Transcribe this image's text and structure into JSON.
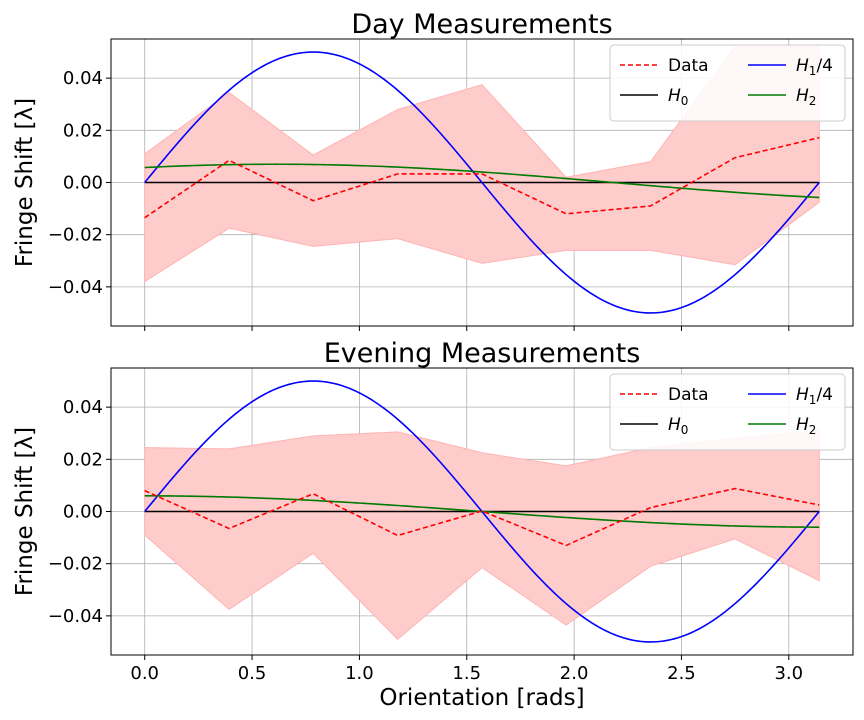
{
  "chart_data": [
    {
      "type": "line",
      "title": "Day Measurements",
      "xlabel": "",
      "ylabel": "Fringe Shift [λ]",
      "xlim": [
        -0.157,
        3.299
      ],
      "ylim": [
        -0.055,
        0.055
      ],
      "xticks": [
        0.0,
        0.5,
        1.0,
        1.5,
        2.0,
        2.5,
        3.0
      ],
      "xtick_labels_shown": false,
      "yticks": [
        -0.04,
        -0.02,
        0.0,
        0.02,
        0.04
      ],
      "ytick_labels": [
        "−0.04",
        "−0.02",
        "0.00",
        "0.02",
        "0.04"
      ],
      "grid": true,
      "legend_position": "top-right",
      "legend_columns": 2,
      "series": [
        {
          "name": "Data",
          "kind": "dashed-line",
          "color": "#ff0000",
          "x": [
            0.0,
            0.393,
            0.785,
            1.178,
            1.571,
            1.963,
            2.356,
            2.749,
            3.142
          ],
          "y": [
            -0.0135,
            0.0085,
            -0.007,
            0.0033,
            0.0033,
            -0.012,
            -0.009,
            0.0095,
            0.0172
          ],
          "band_lower": [
            -0.038,
            -0.0175,
            -0.0245,
            -0.0215,
            -0.031,
            -0.026,
            -0.026,
            -0.0315,
            -0.0075
          ],
          "band_upper": [
            0.011,
            0.0345,
            0.0105,
            0.028,
            0.0375,
            0.002,
            0.008,
            0.052,
            0.052
          ],
          "band_color": "#ffcccc"
        },
        {
          "name": "H0",
          "kind": "function",
          "color": "#000000",
          "function": "y = 0"
        },
        {
          "name": "H1/4",
          "kind": "function",
          "color": "#0000ff",
          "function": "y = 0.05*sin(2x)"
        },
        {
          "name": "H2",
          "kind": "function",
          "color": "#007a00",
          "function": "y = 0.007*sin(x+0.96)"
        }
      ],
      "legend": [
        {
          "label": "Data",
          "sub": "",
          "suffix": "",
          "italic": false
        },
        {
          "label": "H",
          "sub": "0",
          "suffix": "",
          "italic": true
        },
        {
          "label": "H",
          "sub": "1",
          "suffix": "/4",
          "italic": true
        },
        {
          "label": "H",
          "sub": "2",
          "suffix": "",
          "italic": true
        }
      ]
    },
    {
      "type": "line",
      "title": "Evening Measurements",
      "xlabel": "Orientation [rads]",
      "ylabel": "Fringe Shift [λ]",
      "xlim": [
        -0.157,
        3.299
      ],
      "ylim": [
        -0.055,
        0.055
      ],
      "xticks": [
        0.0,
        0.5,
        1.0,
        1.5,
        2.0,
        2.5,
        3.0
      ],
      "xtick_labels": [
        "0.0",
        "0.5",
        "1.0",
        "1.5",
        "2.0",
        "2.5",
        "3.0"
      ],
      "xtick_labels_shown": true,
      "yticks": [
        -0.04,
        -0.02,
        0.0,
        0.02,
        0.04
      ],
      "ytick_labels": [
        "−0.04",
        "−0.02",
        "0.00",
        "0.02",
        "0.04"
      ],
      "grid": true,
      "legend_position": "top-right",
      "legend_columns": 2,
      "series": [
        {
          "name": "Data",
          "kind": "dashed-line",
          "color": "#ff0000",
          "x": [
            0.0,
            0.393,
            0.785,
            1.178,
            1.571,
            1.963,
            2.356,
            2.749,
            3.142
          ],
          "y": [
            0.008,
            -0.0065,
            0.0068,
            -0.0092,
            0.0002,
            -0.013,
            0.0015,
            0.0088,
            0.0025
          ],
          "band_lower": [
            -0.009,
            -0.0375,
            -0.016,
            -0.049,
            -0.0215,
            -0.0435,
            -0.021,
            -0.0105,
            -0.0265
          ],
          "band_upper": [
            0.0245,
            0.024,
            0.029,
            0.0305,
            0.0225,
            0.0175,
            0.0245,
            0.028,
            0.031
          ],
          "band_color": "#ffcccc"
        },
        {
          "name": "H0",
          "kind": "function",
          "color": "#000000",
          "function": "y = 0"
        },
        {
          "name": "H1/4",
          "kind": "function",
          "color": "#0000ff",
          "function": "y = 0.05*sin(2x)"
        },
        {
          "name": "H2",
          "kind": "function",
          "color": "#007a00",
          "function": "y = 0.006*cos(x)"
        }
      ],
      "legend": [
        {
          "label": "Data",
          "sub": "",
          "suffix": "",
          "italic": false
        },
        {
          "label": "H",
          "sub": "0",
          "suffix": "",
          "italic": true
        },
        {
          "label": "H",
          "sub": "1",
          "suffix": "/4",
          "italic": true
        },
        {
          "label": "H",
          "sub": "2",
          "suffix": "",
          "italic": true
        }
      ]
    }
  ]
}
